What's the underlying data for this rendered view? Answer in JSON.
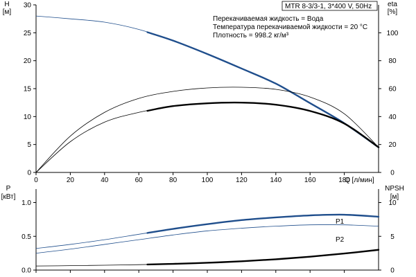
{
  "header": {
    "model": "MTR 8-3/3-1, 3*400 V, 50Hz",
    "liquid": "Перекачиваемая жидкость = Вода",
    "temperature": "Температура перекачиваемой жидкости = 20 °C",
    "density": "Плотность = 998.2 кг/м³"
  },
  "chart_data": [
    {
      "type": "line",
      "xlabel": "Q [л/мин]",
      "ylabel": "H\n[м]",
      "y2label": "eta\n[%]",
      "xlim": [
        0,
        200
      ],
      "ylim": [
        0,
        30
      ],
      "y2lim": [
        0,
        120
      ],
      "xticks": [
        0,
        20,
        40,
        60,
        80,
        100,
        120,
        140,
        160,
        180
      ],
      "yticks": [
        0,
        5,
        10,
        15,
        20,
        25,
        30
      ],
      "y2ticks": [
        0,
        20,
        40,
        60,
        80,
        100
      ],
      "series": [
        {
          "id": "H",
          "axis": "left",
          "color": "#1f4e8c",
          "x": [
            0,
            20,
            40,
            60,
            80,
            100,
            120,
            140,
            160,
            180,
            200
          ],
          "y": [
            28,
            27.5,
            26.9,
            25.6,
            23.6,
            21.2,
            18.6,
            15.9,
            12.4,
            8.8,
            4.5
          ],
          "highlight": [
            65,
            200
          ]
        },
        {
          "id": "eta-upper",
          "axis": "right",
          "color": "#000000",
          "x": [
            0,
            20,
            40,
            60,
            80,
            100,
            120,
            140,
            160,
            180,
            200
          ],
          "y": [
            0,
            26,
            43,
            53,
            58,
            60.5,
            61,
            59.5,
            54,
            42,
            18
          ]
        },
        {
          "id": "eta-lower",
          "axis": "right",
          "color": "#000000",
          "x": [
            0,
            20,
            40,
            60,
            80,
            100,
            120,
            140,
            160,
            180,
            200
          ],
          "y": [
            0,
            22,
            36,
            43,
            47.5,
            49.5,
            50,
            48.5,
            44,
            35,
            18
          ],
          "highlight": [
            65,
            200
          ]
        }
      ]
    },
    {
      "type": "line",
      "xlabel": "",
      "ylabel": "P\n[кВт]",
      "y2label": "NPSH\n[м]",
      "xlim": [
        0,
        200
      ],
      "ylim": [
        0,
        1.2
      ],
      "y2lim": [
        0,
        12
      ],
      "yticks": [
        0.0,
        0.5,
        1.0
      ],
      "ytick_labels": [
        "0.0",
        "0.5",
        "1.0"
      ],
      "y2ticks": [
        0,
        5,
        10
      ],
      "series": [
        {
          "name": "P1",
          "axis": "left",
          "color": "#1f4e8c",
          "x": [
            0,
            20,
            40,
            60,
            80,
            100,
            120,
            140,
            160,
            180,
            200
          ],
          "y": [
            0.32,
            0.38,
            0.45,
            0.53,
            0.61,
            0.68,
            0.74,
            0.78,
            0.81,
            0.82,
            0.79
          ],
          "highlight": [
            65,
            200
          ]
        },
        {
          "name": "P2",
          "axis": "left",
          "color": "#1f4e8c",
          "x": [
            0,
            20,
            40,
            60,
            80,
            100,
            120,
            140,
            160,
            180,
            200
          ],
          "y": [
            0.25,
            0.31,
            0.38,
            0.45,
            0.52,
            0.58,
            0.62,
            0.65,
            0.67,
            0.67,
            0.65
          ]
        },
        {
          "id": "NPSH",
          "axis": "right",
          "color": "#000000",
          "x": [
            0,
            20,
            40,
            60,
            80,
            100,
            120,
            140,
            160,
            180,
            200
          ],
          "y": [
            0.6,
            0.65,
            0.72,
            0.8,
            0.92,
            1.08,
            1.3,
            1.6,
            1.98,
            2.45,
            3.0
          ],
          "highlight": [
            65,
            200
          ]
        }
      ]
    }
  ]
}
